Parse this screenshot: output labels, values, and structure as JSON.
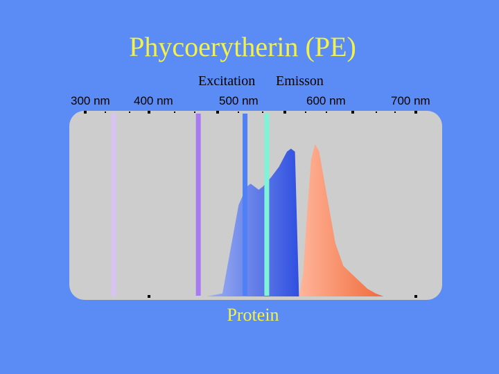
{
  "title": "Phycoerytherin (PE)",
  "footer": "Protein",
  "colors": {
    "background": "#5b8cf5",
    "panel": "#cdcdcd",
    "title_text": "#f2f24a",
    "excitation": "#3f5be0",
    "emission": "#f47a52"
  },
  "chart_data": {
    "type": "area",
    "title": "Phycoerytherin (PE)",
    "xlabel": "",
    "ylabel": "",
    "x_ticks": [
      "300 nm",
      "400 nm",
      "500 nm",
      "600 nm",
      "700 nm"
    ],
    "xlim": [
      300,
      700
    ],
    "ylim": [
      0,
      1
    ],
    "legend": [
      "Excitation",
      "Emisson"
    ],
    "series": [
      {
        "name": "Excitation",
        "x": [
          440,
          460,
          480,
          490,
          495,
          500,
          505,
          510,
          520,
          530,
          540,
          545,
          550,
          555
        ],
        "y": [
          0,
          0.02,
          0.6,
          0.72,
          0.74,
          0.72,
          0.7,
          0.72,
          0.78,
          0.85,
          0.95,
          0.97,
          0.95,
          0
        ]
      },
      {
        "name": "Emisson",
        "x": [
          555,
          560,
          565,
          570,
          575,
          580,
          590,
          600,
          610,
          620,
          630,
          640,
          650,
          660
        ],
        "y": [
          0,
          0.15,
          0.55,
          0.9,
          1.0,
          0.95,
          0.65,
          0.35,
          0.2,
          0.15,
          0.1,
          0.05,
          0.02,
          0
        ]
      }
    ],
    "laser_lines": [
      {
        "wavelength": 325,
        "color": "#d8c3f2"
      },
      {
        "wavelength": 430,
        "color": "#a77af2"
      },
      {
        "wavelength": 488,
        "color": "#4f80f5"
      },
      {
        "wavelength": 515,
        "color": "#80f2d8"
      }
    ]
  }
}
